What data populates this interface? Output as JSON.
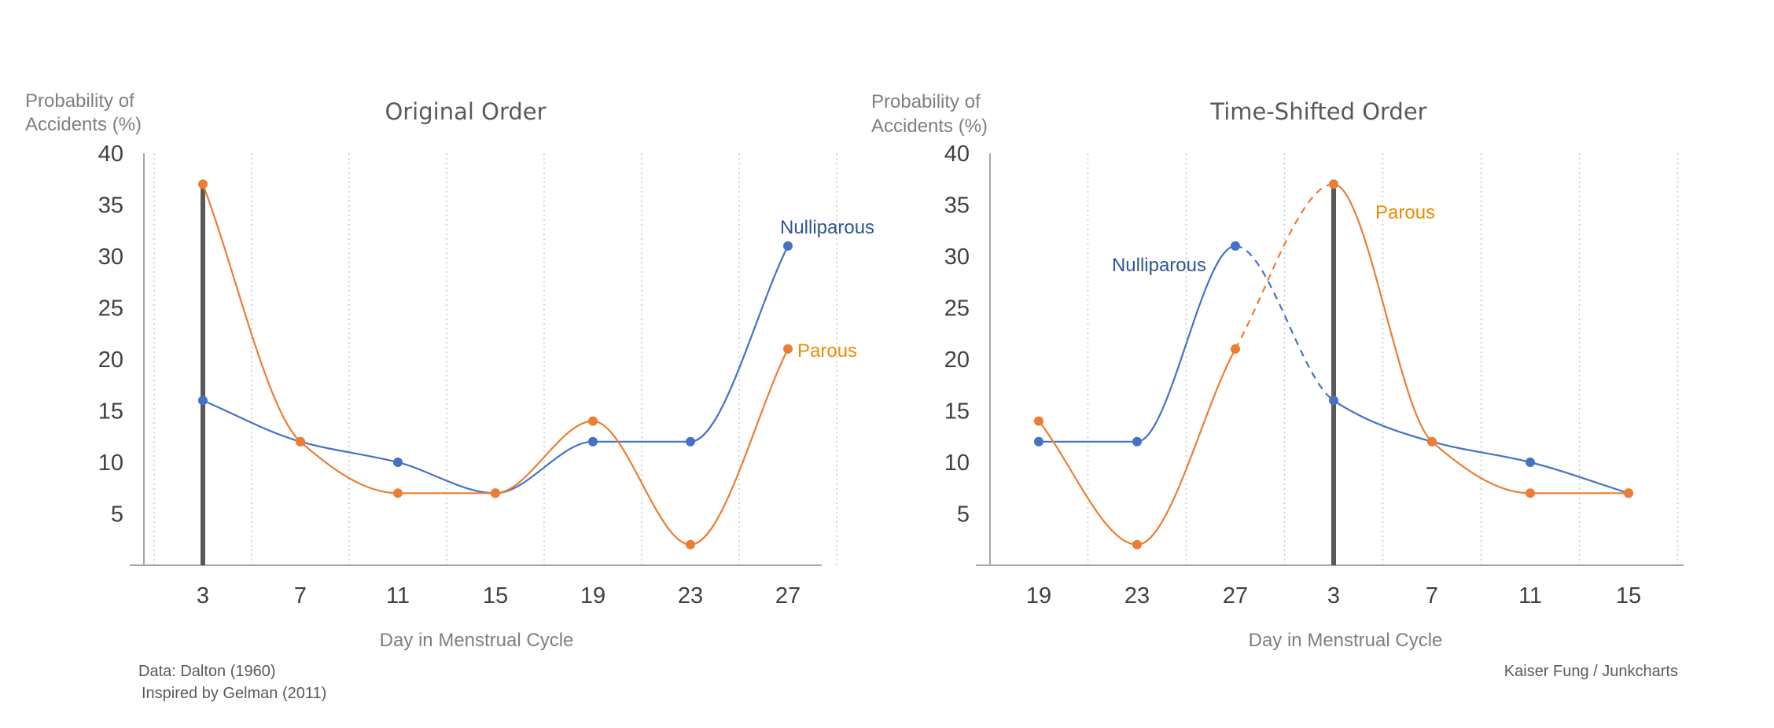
{
  "colors": {
    "nulliparous": "#4472c4",
    "nulliparous_label": "#2f5597",
    "parous": "#ed7d31",
    "parous_label": "#ed8b00",
    "axis": "#a6a6a6",
    "grid": "#c8c8c8",
    "marker": "#595959"
  },
  "chart_data": [
    {
      "type": "line",
      "title": "Original Order",
      "ylabel": [
        "Probability of",
        "Accidents (%)"
      ],
      "xlabel": "Day in Menstrual Cycle",
      "categories": [
        "3",
        "7",
        "11",
        "15",
        "19",
        "23",
        "27"
      ],
      "ylim": [
        0,
        40
      ],
      "yticks": [
        5,
        10,
        15,
        20,
        25,
        30,
        35,
        40
      ],
      "grid": "vertical-dotted",
      "highlight_category": "3",
      "series": [
        {
          "name": "Nulliparous",
          "key": "nulliparous",
          "values": [
            16,
            12,
            10,
            7,
            12,
            12,
            31
          ]
        },
        {
          "name": "Parous",
          "key": "parous",
          "values": [
            37,
            12,
            7,
            7,
            14,
            2,
            21
          ]
        }
      ]
    },
    {
      "type": "line",
      "title": "Time-Shifted Order",
      "ylabel": [
        "Probability of",
        "Accidents (%)"
      ],
      "xlabel": "Day in Menstrual Cycle",
      "categories": [
        "19",
        "23",
        "27",
        "3",
        "7",
        "11",
        "15"
      ],
      "ylim": [
        0,
        40
      ],
      "yticks": [
        5,
        10,
        15,
        20,
        25,
        30,
        35,
        40
      ],
      "grid": "vertical-dotted",
      "highlight_category": "3",
      "dashed_between": [
        "27",
        "3"
      ],
      "series": [
        {
          "name": "Nulliparous",
          "key": "nulliparous",
          "values": [
            12,
            12,
            31,
            16,
            12,
            10,
            7
          ]
        },
        {
          "name": "Parous",
          "key": "parous",
          "values": [
            14,
            2,
            21,
            37,
            12,
            7,
            7
          ]
        }
      ]
    }
  ],
  "notes": {
    "source": "Data: Dalton (1960)",
    "inspired": "Inspired by Gelman (2011)",
    "credit": "Kaiser Fung / Junkcharts"
  }
}
